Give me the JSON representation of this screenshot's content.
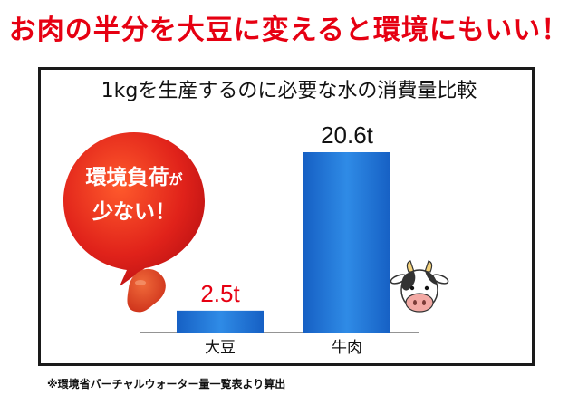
{
  "headline": "お肉の半分を大豆に変えると環境にもいい！",
  "bubble": {
    "line1": "環境負荷",
    "particle": "が",
    "line2": "少ない！"
  },
  "footnote": "※環境省バーチャルウォーター量一覧表より算出",
  "colors": {
    "headline": "#e60012",
    "bar": "#1a6fcf",
    "bar_light": "#2f8be6",
    "bubble": "#d3191b",
    "value_soy": "#e60012",
    "value_beef": "#111111"
  },
  "chart_data": {
    "type": "bar",
    "title": "1kgを生産するのに必要な水の消費量比較",
    "categories": [
      "大豆",
      "牛肉"
    ],
    "values": [
      2.5,
      20.6
    ],
    "value_labels": [
      "2.5t",
      "20.6t"
    ],
    "unit": "t",
    "ylim": [
      0,
      20.6
    ],
    "grid": false,
    "legend": "none"
  }
}
